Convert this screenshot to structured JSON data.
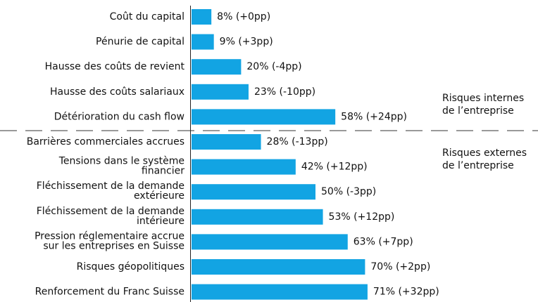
{
  "chart_data": {
    "type": "barh",
    "categories": [
      [
        "Coût du capital"
      ],
      [
        "Pénurie de capital"
      ],
      [
        "Hausse des coûts de revient"
      ],
      [
        "Hausse des coûts salariaux"
      ],
      [
        "Détérioration du cash flow"
      ],
      [
        "Barrières commerciales accrues"
      ],
      [
        "Tensions dans le système",
        "financier"
      ],
      [
        "Fléchissement de la demande",
        "extérieure"
      ],
      [
        "Fléchissement de la demande",
        "intérieure"
      ],
      [
        "Pression réglementaire accrue",
        "sur les entreprises en Suisse"
      ],
      [
        "Risques géopolitiques"
      ],
      [
        "Renforcement du Franc Suisse"
      ]
    ],
    "values": [
      8,
      9,
      20,
      23,
      58,
      28,
      42,
      50,
      53,
      63,
      70,
      71
    ],
    "value_labels": [
      "8% (+0pp)",
      "9% (+3pp)",
      "20% (-4pp)",
      "23% (-10pp)",
      "58% (+24pp)",
      "28% (-13pp)",
      "42% (+12pp)",
      "50% (-3pp)",
      "53% (+12pp)",
      "63% (+7pp)",
      "70% (+2pp)",
      "71% (+32pp)"
    ],
    "color": "#12a4e3",
    "annotations": [
      [
        "Risques internes",
        "de l’entreprise"
      ],
      [
        "Risques externes",
        "de l’entreprise"
      ]
    ]
  }
}
